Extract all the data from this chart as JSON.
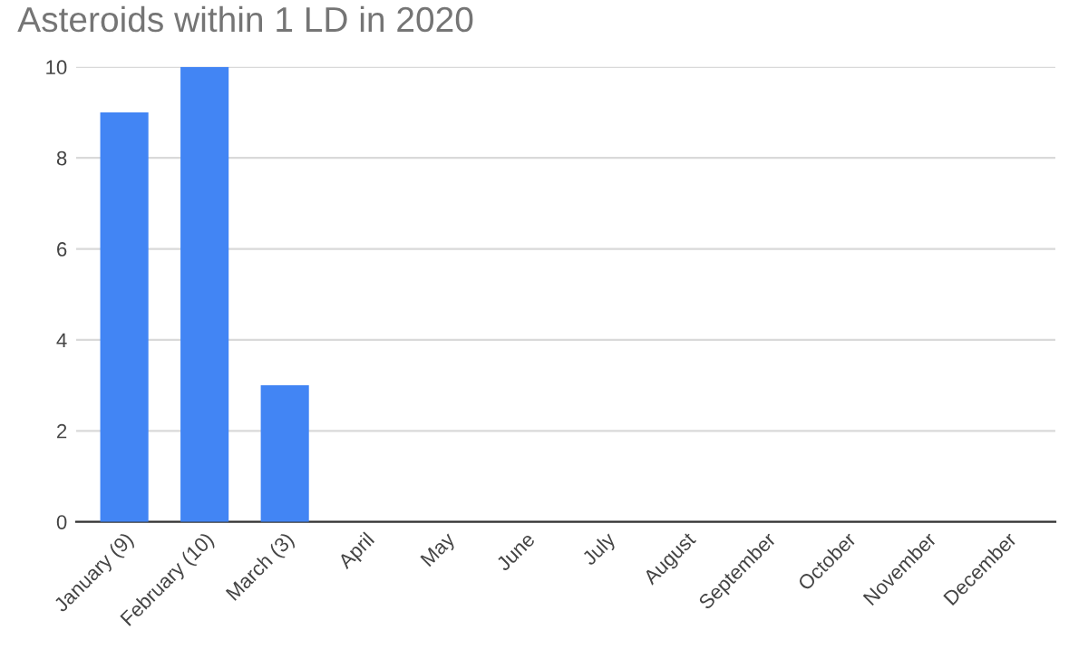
{
  "chart_data": {
    "type": "bar",
    "title": "Asteroids within 1 LD in 2020",
    "categories": [
      "January (9)",
      "February (10)",
      "March (3)",
      "April",
      "May",
      "June",
      "July",
      "August",
      "September",
      "October",
      "November",
      "December"
    ],
    "values": [
      9,
      10,
      3,
      null,
      null,
      null,
      null,
      null,
      null,
      null,
      null,
      null
    ],
    "color": "#4285f4",
    "ylim": [
      0,
      10
    ],
    "yticks": [
      0,
      2,
      4,
      6,
      8,
      10
    ],
    "grid": "y"
  }
}
